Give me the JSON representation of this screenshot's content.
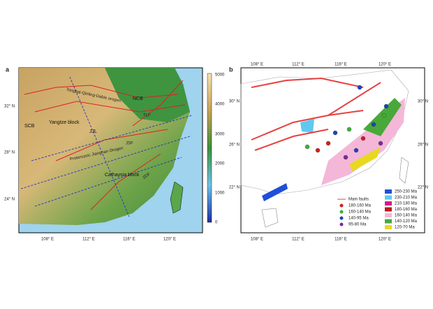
{
  "panel_a": {
    "label": "a",
    "lat_labels": [
      "32° N",
      "28° N",
      "24° N"
    ],
    "lon_labels": [
      "108° E",
      "112° E",
      "116° E",
      "120° E"
    ],
    "colorbar_ticks": [
      "5000",
      "4000",
      "3000",
      "2000",
      "1000",
      "0"
    ],
    "map_labels": [
      "NCB",
      "Yangtze block",
      "SCB",
      "Cathaysia block",
      "Tongbai-Qinling-Dabie orogen",
      "JJL",
      "Proterozoic Jiangnan Orogen",
      "JSF",
      "TLF",
      "ZDF"
    ]
  },
  "panel_b": {
    "label": "b",
    "lon_labels": [
      "108° E",
      "112° E",
      "116° E",
      "120° E"
    ],
    "lat_labels": [
      "30° N",
      "26° N",
      "22° N"
    ],
    "legend_faults": "Main faults",
    "legend_dots": [
      "180-160 Ma",
      "160-140 Ma",
      "140-95 Ma",
      "95-80 Ma"
    ],
    "legend_boxes": [
      "250-230 Ma",
      "230-210 Ma",
      "210-180 Ma",
      "180-160 Ma",
      "160-140 Ma",
      "140-120 Ma",
      "120-70 Ma"
    ]
  }
}
